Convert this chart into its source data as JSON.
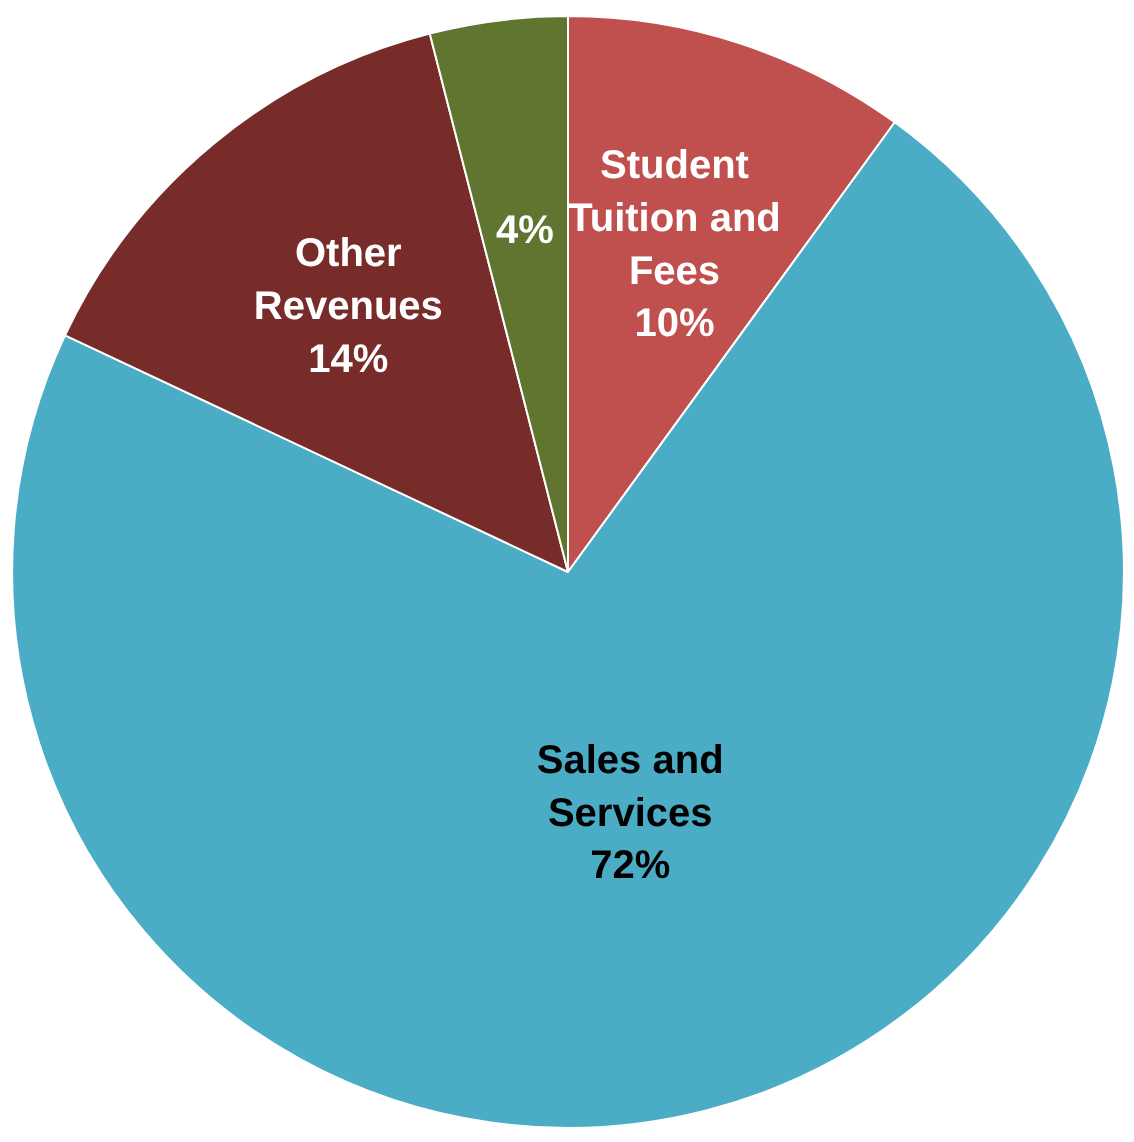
{
  "chart_data": {
    "type": "pie",
    "categories": [
      "Student Tuition and Fees",
      "Sales and Services",
      "Other Revenues",
      null
    ],
    "values": [
      10,
      72,
      14,
      4
    ],
    "value_labels": [
      "10%",
      "72%",
      "14%",
      "4%"
    ],
    "colors": [
      "#c0504d",
      "#4bacc6",
      "#772c2a",
      "#5f7530"
    ]
  }
}
